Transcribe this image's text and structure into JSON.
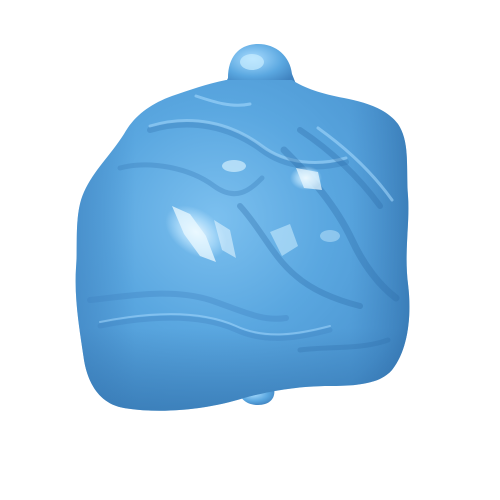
{
  "scene": {
    "subject": "surface-render",
    "background_color": "#ffffff",
    "colors": {
      "base": "#5aa7e0",
      "mid": "#4e99d4",
      "shadow": "#3f82bf",
      "deep_shadow": "#2f6ea8",
      "highlight": "#bfe6ff",
      "specular": "#eaf8ff"
    }
  }
}
